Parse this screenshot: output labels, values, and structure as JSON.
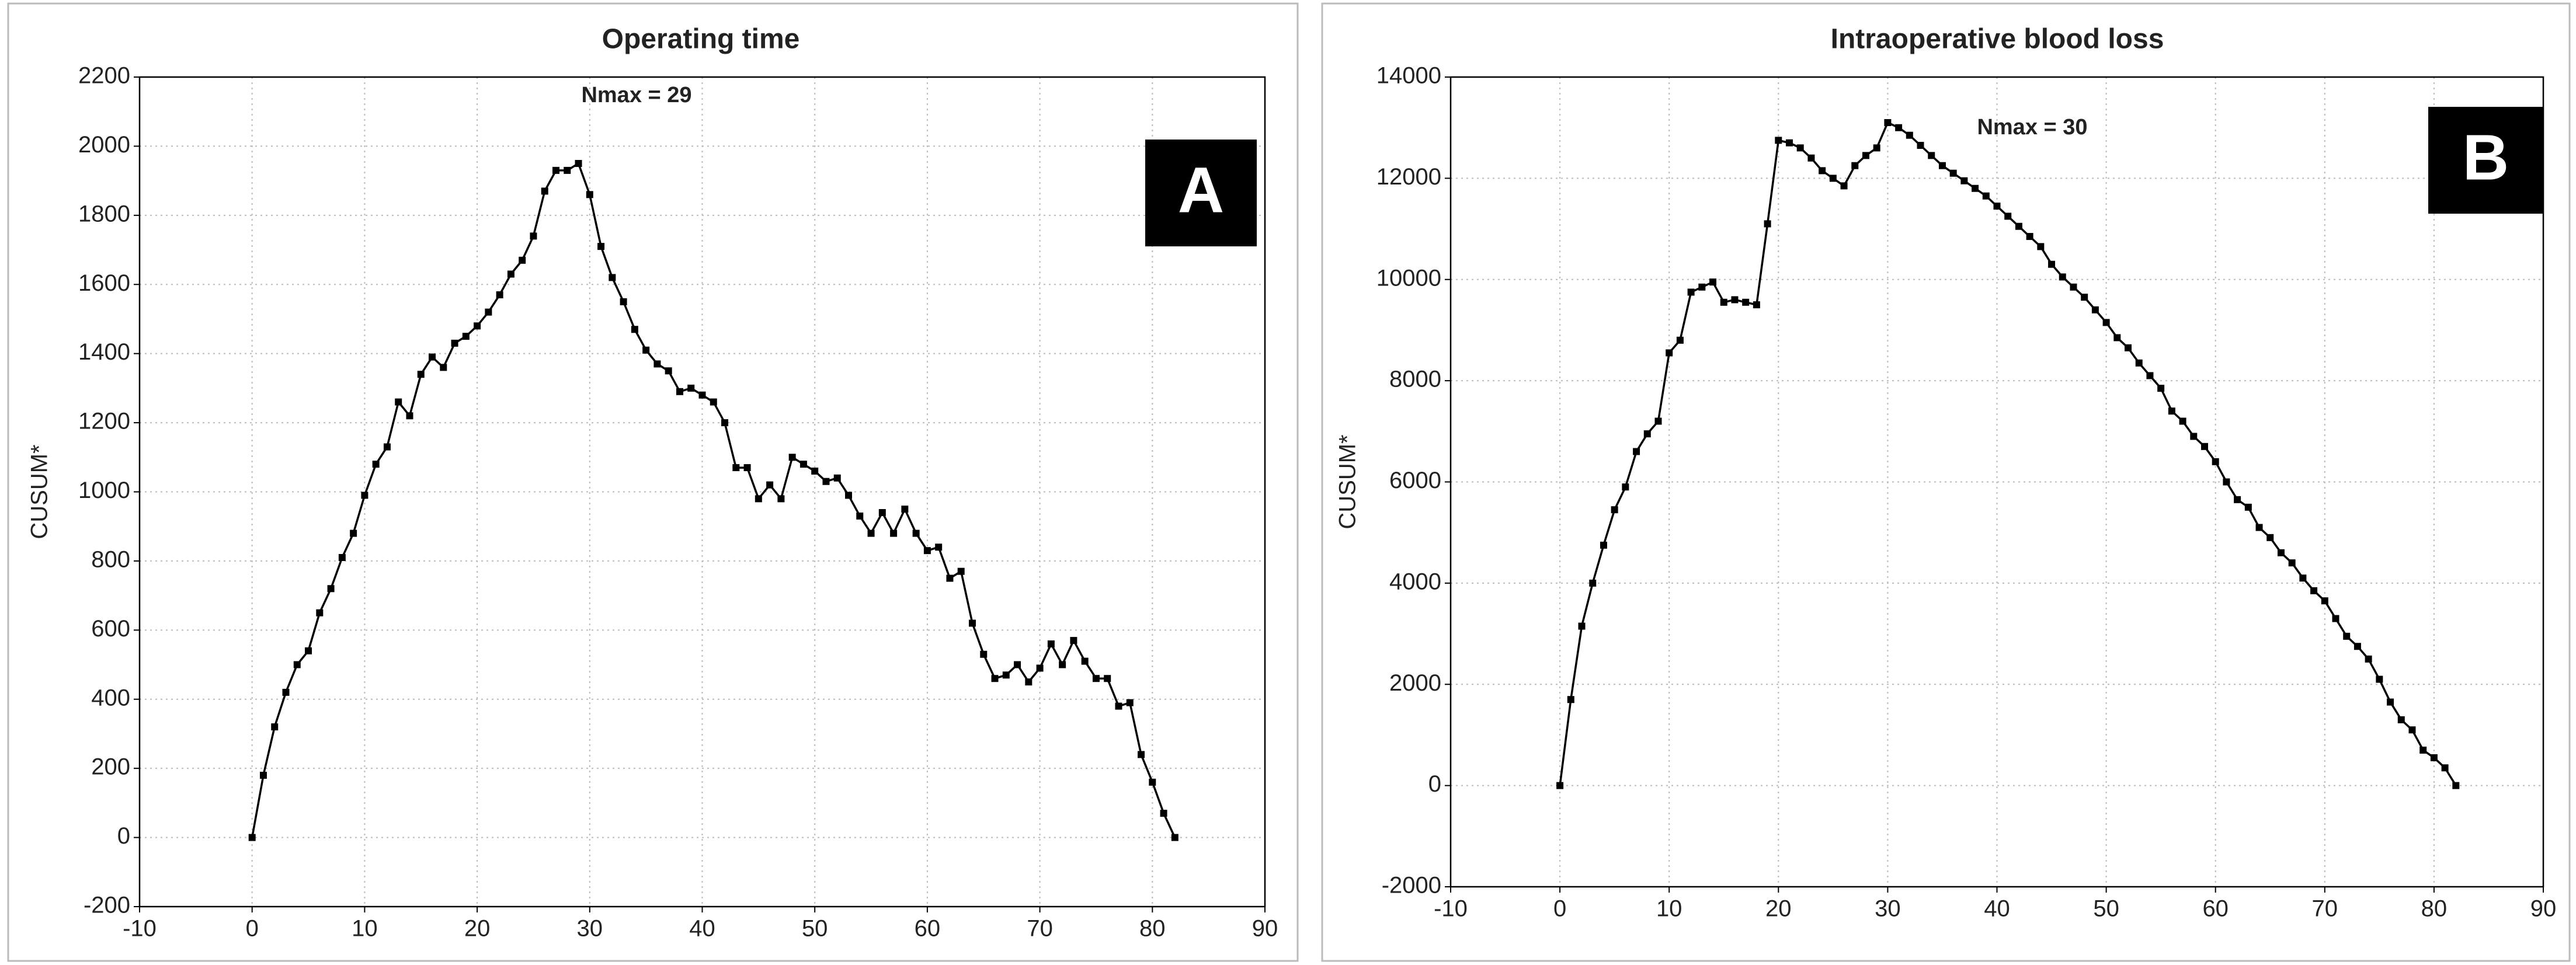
{
  "chart_data": [
    {
      "type": "line",
      "title": "Operating time",
      "annotation": "Nmax = 29",
      "panel_label": "A",
      "y_label": "CUSUM*",
      "x": [
        0,
        1,
        2,
        3,
        4,
        5,
        6,
        7,
        8,
        9,
        10,
        11,
        12,
        13,
        14,
        15,
        16,
        17,
        18,
        19,
        20,
        21,
        22,
        23,
        24,
        25,
        26,
        27,
        28,
        29,
        30,
        31,
        32,
        33,
        34,
        35,
        36,
        37,
        38,
        39,
        40,
        41,
        42,
        43,
        44,
        45,
        46,
        47,
        48,
        49,
        50,
        51,
        52,
        53,
        54,
        55,
        56,
        57,
        58,
        59,
        60,
        61,
        62,
        63,
        64,
        65,
        66,
        67,
        68,
        69,
        70,
        71,
        72,
        73,
        74,
        75,
        76,
        77,
        78,
        79,
        80,
        81,
        82
      ],
      "values": [
        0,
        180,
        320,
        420,
        500,
        540,
        650,
        720,
        810,
        880,
        990,
        1080,
        1130,
        1260,
        1220,
        1340,
        1390,
        1360,
        1430,
        1450,
        1480,
        1520,
        1570,
        1630,
        1670,
        1740,
        1870,
        1930,
        1930,
        1950,
        1860,
        1710,
        1620,
        1550,
        1470,
        1410,
        1370,
        1350,
        1290,
        1300,
        1280,
        1260,
        1200,
        1070,
        1070,
        980,
        1020,
        980,
        1100,
        1080,
        1060,
        1030,
        1040,
        990,
        930,
        880,
        940,
        880,
        950,
        880,
        830,
        840,
        750,
        770,
        620,
        530,
        460,
        470,
        500,
        450,
        490,
        560,
        500,
        570,
        510,
        460,
        460,
        380,
        390,
        240,
        160,
        70,
        0
      ],
      "color": "#000000",
      "grid": true,
      "xlim": [
        -10,
        90
      ],
      "xticks": [
        -10,
        0,
        10,
        20,
        30,
        40,
        50,
        60,
        70,
        80,
        90
      ],
      "ylim": [
        -200,
        2200
      ],
      "yticks": [
        -200,
        0,
        200,
        400,
        600,
        800,
        1000,
        1200,
        1400,
        1600,
        1800,
        2000,
        2200
      ]
    },
    {
      "type": "line",
      "title": "Intraoperative blood loss",
      "annotation": "Nmax = 30",
      "panel_label": "B",
      "y_label": "CUSUM*",
      "x": [
        0,
        1,
        2,
        3,
        4,
        5,
        6,
        7,
        8,
        9,
        10,
        11,
        12,
        13,
        14,
        15,
        16,
        17,
        18,
        19,
        20,
        21,
        22,
        23,
        24,
        25,
        26,
        27,
        28,
        29,
        30,
        31,
        32,
        33,
        34,
        35,
        36,
        37,
        38,
        39,
        40,
        41,
        42,
        43,
        44,
        45,
        46,
        47,
        48,
        49,
        50,
        51,
        52,
        53,
        54,
        55,
        56,
        57,
        58,
        59,
        60,
        61,
        62,
        63,
        64,
        65,
        66,
        67,
        68,
        69,
        70,
        71,
        72,
        73,
        74,
        75,
        76,
        77,
        78,
        79,
        80,
        81,
        82
      ],
      "values": [
        0,
        1700,
        3150,
        4000,
        4750,
        5450,
        5900,
        6600,
        6950,
        7200,
        8550,
        8800,
        9750,
        9850,
        9950,
        9550,
        9600,
        9550,
        9500,
        11100,
        12750,
        12700,
        12600,
        12400,
        12150,
        12000,
        11850,
        12250,
        12450,
        12600,
        13100,
        13000,
        12850,
        12650,
        12450,
        12250,
        12100,
        11950,
        11800,
        11650,
        11450,
        11250,
        11050,
        10850,
        10650,
        10300,
        10050,
        9850,
        9650,
        9400,
        9150,
        8850,
        8650,
        8350,
        8100,
        7850,
        7400,
        7200,
        6900,
        6700,
        6400,
        6000,
        5650,
        5500,
        5100,
        4900,
        4600,
        4400,
        4100,
        3850,
        3650,
        3300,
        2950,
        2750,
        2500,
        2100,
        1650,
        1300,
        1100,
        700,
        550,
        350,
        0
      ],
      "color": "#000000",
      "grid": true,
      "xlim": [
        -10,
        90
      ],
      "xticks": [
        -10,
        0,
        10,
        20,
        30,
        40,
        50,
        60,
        70,
        80,
        90
      ],
      "ylim": [
        -2000,
        14000
      ],
      "yticks": [
        -2000,
        0,
        2000,
        4000,
        6000,
        8000,
        10000,
        12000,
        14000
      ]
    }
  ]
}
